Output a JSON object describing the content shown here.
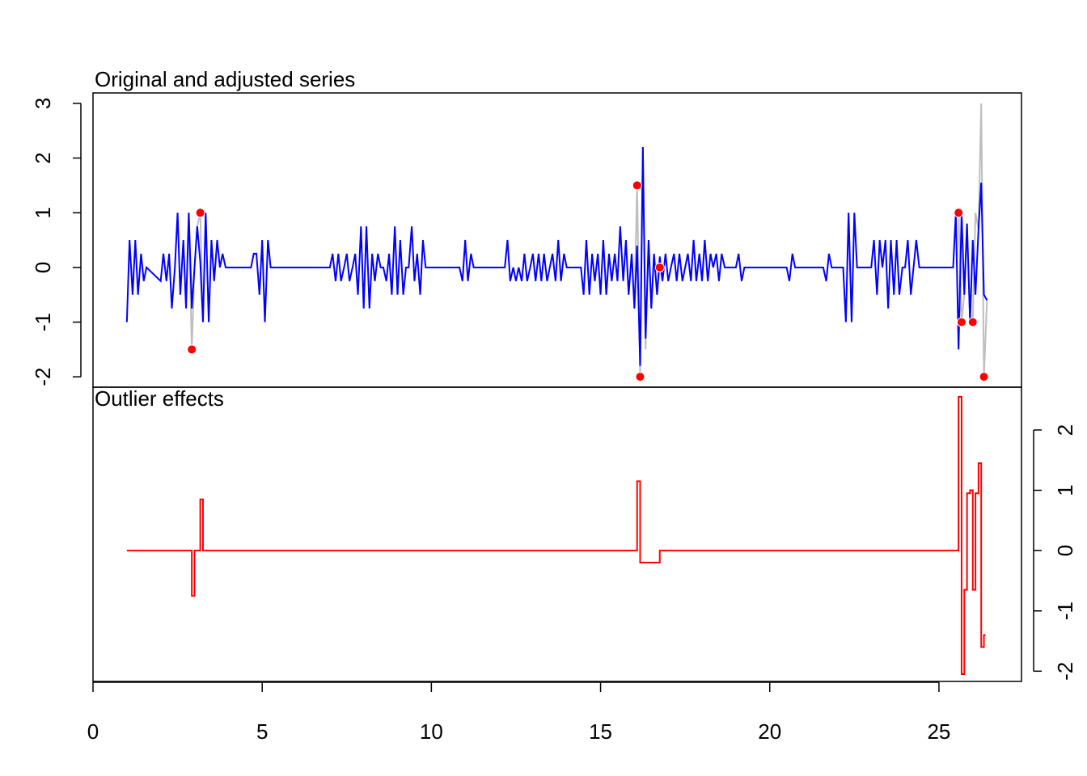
{
  "chart_data": [
    {
      "type": "line",
      "title": "Original and adjusted series",
      "x": [
        1.0,
        1.08,
        1.17,
        1.25,
        1.33,
        1.42,
        1.5,
        1.58,
        2.0,
        2.08,
        2.17,
        2.25,
        2.33,
        2.42,
        2.5,
        2.58,
        2.67,
        2.75,
        2.83,
        2.92,
        3.0,
        3.08,
        3.17,
        3.25,
        3.33,
        3.42,
        3.5,
        3.58,
        3.67,
        3.75,
        3.83,
        3.92,
        4.67,
        4.75,
        4.83,
        4.92,
        5.0,
        5.08,
        5.17,
        5.25,
        7.0,
        7.08,
        7.17,
        7.25,
        7.33,
        7.42,
        7.5,
        7.58,
        7.67,
        7.75,
        7.83,
        7.92,
        8.0,
        8.08,
        8.17,
        8.25,
        8.33,
        8.42,
        8.5,
        8.58,
        8.67,
        8.75,
        8.83,
        8.92,
        9.0,
        9.08,
        9.17,
        9.25,
        9.33,
        9.42,
        9.5,
        9.58,
        9.67,
        9.75,
        9.83,
        10.83,
        10.92,
        11.0,
        11.08,
        11.17,
        11.25,
        12.17,
        12.25,
        12.33,
        12.42,
        12.5,
        12.58,
        12.67,
        12.75,
        12.83,
        12.92,
        13.0,
        13.08,
        13.17,
        13.25,
        13.33,
        13.42,
        13.5,
        13.58,
        13.67,
        13.75,
        13.83,
        13.92,
        14.0,
        14.42,
        14.5,
        14.58,
        14.67,
        14.75,
        14.83,
        14.92,
        15.0,
        15.08,
        15.17,
        15.25,
        15.33,
        15.42,
        15.5,
        15.58,
        15.67,
        15.75,
        15.83,
        15.92,
        16.0,
        16.08,
        16.17,
        16.25,
        16.33,
        16.42,
        16.5,
        16.58,
        16.67,
        16.75,
        16.83,
        16.92,
        17.0,
        17.08,
        17.17,
        17.25,
        17.33,
        17.42,
        17.5,
        17.58,
        17.67,
        17.75,
        17.83,
        17.92,
        18.0,
        18.08,
        18.17,
        18.25,
        18.33,
        18.42,
        18.5,
        18.58,
        18.67,
        19.0,
        19.08,
        19.17,
        19.25,
        20.5,
        20.58,
        20.67,
        20.75,
        21.58,
        21.67,
        21.75,
        21.83,
        22.17,
        22.25,
        22.33,
        22.42,
        22.5,
        22.58,
        23.0,
        23.08,
        23.17,
        23.25,
        23.33,
        23.42,
        23.5,
        23.58,
        23.67,
        23.75,
        23.83,
        23.92,
        24.0,
        24.08,
        24.17,
        24.25,
        24.33,
        24.42,
        25.42,
        25.5,
        25.58,
        25.67,
        25.75,
        25.83,
        25.92,
        26.0,
        26.08,
        26.17,
        26.25,
        26.33,
        26.42
      ],
      "series": [
        {
          "color": "#bebebe",
          "x": [
            2.83,
            2.92,
            3.0,
            3.08,
            3.17,
            3.25,
            3.3,
            16.0,
            16.08,
            16.17,
            16.25,
            16.33,
            16.42,
            16.5,
            16.58,
            16.67,
            16.75,
            16.83,
            16.9,
            25.5,
            25.58,
            25.67,
            25.75,
            25.83,
            25.92,
            26.0,
            26.08,
            26.17,
            26.25,
            26.33,
            26.42
          ],
          "values": [
            1,
            -1.5,
            0,
            0.75,
            1,
            -1,
            null,
            -0.75,
            1.5,
            -2,
            2.2,
            -1.5,
            0.5,
            -0.75,
            0.25,
            -0.5,
            0,
            -0.25,
            null,
            1,
            1,
            -1,
            -0.5,
            0.8,
            -1,
            -1,
            1,
            0.7,
            3,
            -2,
            -0.6
          ]
        },
        {
          "color": "#0000ff",
          "values": [
            -1,
            0.5,
            -0.5,
            0.5,
            -0.5,
            0.25,
            -0.25,
            0,
            -0.25,
            0.25,
            -0.25,
            0.25,
            -0.75,
            0,
            1,
            -0.5,
            0.5,
            -0.75,
            1,
            -0.75,
            0,
            0.75,
            0.1,
            -1,
            1,
            -1,
            0.5,
            -0.25,
            0.5,
            0,
            0.25,
            0,
            0,
            0.25,
            0.25,
            -0.5,
            0.5,
            -1,
            0.5,
            0,
            0,
            0.25,
            -0.25,
            0.25,
            -0.25,
            0,
            0.25,
            -0.25,
            0,
            0.25,
            -0.5,
            0.75,
            -0.75,
            0.75,
            -0.75,
            0.25,
            -0.25,
            0.25,
            0,
            0,
            -0.25,
            0.25,
            -0.5,
            0.75,
            -0.5,
            0.5,
            -0.5,
            0,
            0,
            0.75,
            -0.25,
            0.25,
            -0.5,
            0.5,
            0,
            0,
            -0.25,
            0.5,
            -0.25,
            0.25,
            0,
            0,
            0.5,
            -0.25,
            0,
            -0.25,
            0,
            -0.25,
            0.25,
            -0.25,
            0,
            0.25,
            -0.25,
            0.25,
            -0.25,
            0.25,
            -0.25,
            0,
            0.25,
            -0.25,
            0.5,
            -0.25,
            0.25,
            0,
            0,
            -0.5,
            0.5,
            -0.5,
            0.25,
            -0.25,
            0.25,
            -0.5,
            0.5,
            -0.5,
            0.25,
            -0.25,
            0.25,
            -0.25,
            0.75,
            -0.25,
            0.5,
            -0.5,
            0.25,
            -0.75,
            0.4,
            -1.8,
            2.2,
            -1.3,
            0.5,
            -0.75,
            0.25,
            -0.5,
            0.2,
            -0.25,
            0.25,
            -0.25,
            0,
            0.25,
            -0.25,
            0.25,
            -0.25,
            0,
            0.25,
            -0.25,
            0.5,
            -0.25,
            0.25,
            -0.25,
            0.5,
            -0.25,
            0.25,
            0,
            0.25,
            -0.25,
            0.25,
            0,
            0,
            0.25,
            -0.25,
            0,
            0,
            -0.25,
            0.25,
            0,
            0,
            -0.25,
            0.25,
            0,
            0,
            -1,
            1,
            -1,
            1,
            0,
            0,
            0.5,
            -0.5,
            0.5,
            0,
            0.5,
            -0.75,
            0.5,
            -0.5,
            0.5,
            -0.5,
            0,
            0,
            0.5,
            -0.5,
            0,
            0.5,
            0,
            0,
            1,
            -1.5,
            1,
            -0.5,
            0.8,
            -1,
            0.5,
            -0.5,
            0.7,
            1.55,
            -0.5,
            -0.6
          ]
        }
      ],
      "points": {
        "color": "#ff0000",
        "x": [
          2.92,
          3.17,
          16.08,
          16.17,
          16.75,
          25.58,
          25.67,
          26.0,
          26.33
        ],
        "values": [
          -1.5,
          1,
          1.5,
          -2,
          0,
          1,
          -1,
          -1,
          -2
        ]
      },
      "xlim": [
        0,
        27.44
      ],
      "ylim": [
        -2.19,
        3.19
      ],
      "yticks": [
        -2,
        -1,
        0,
        1,
        2,
        3
      ],
      "yaxis": "left"
    },
    {
      "type": "step",
      "title": "Outlier effects",
      "color": "#ff0000",
      "x": [
        1.0,
        2.92,
        3.0,
        3.17,
        3.25,
        16.08,
        16.17,
        16.75,
        25.58,
        25.67,
        25.75,
        25.83,
        25.92,
        26.0,
        26.08,
        26.17,
        26.25,
        26.33,
        26.38
      ],
      "values": [
        0,
        -0.75,
        0,
        0.85,
        0,
        1.15,
        -0.2,
        0,
        2.55,
        -2.05,
        -0.65,
        0.95,
        1,
        -0.65,
        0.95,
        1.45,
        -1.6,
        -1.4,
        -1.4
      ],
      "xlim": [
        0,
        27.44
      ],
      "ylim": [
        -2.17,
        2.71
      ],
      "yticks": [
        -2,
        -1,
        0,
        1,
        2
      ],
      "yaxis": "right",
      "xticks": [
        0,
        5,
        10,
        15,
        20,
        25
      ]
    }
  ]
}
